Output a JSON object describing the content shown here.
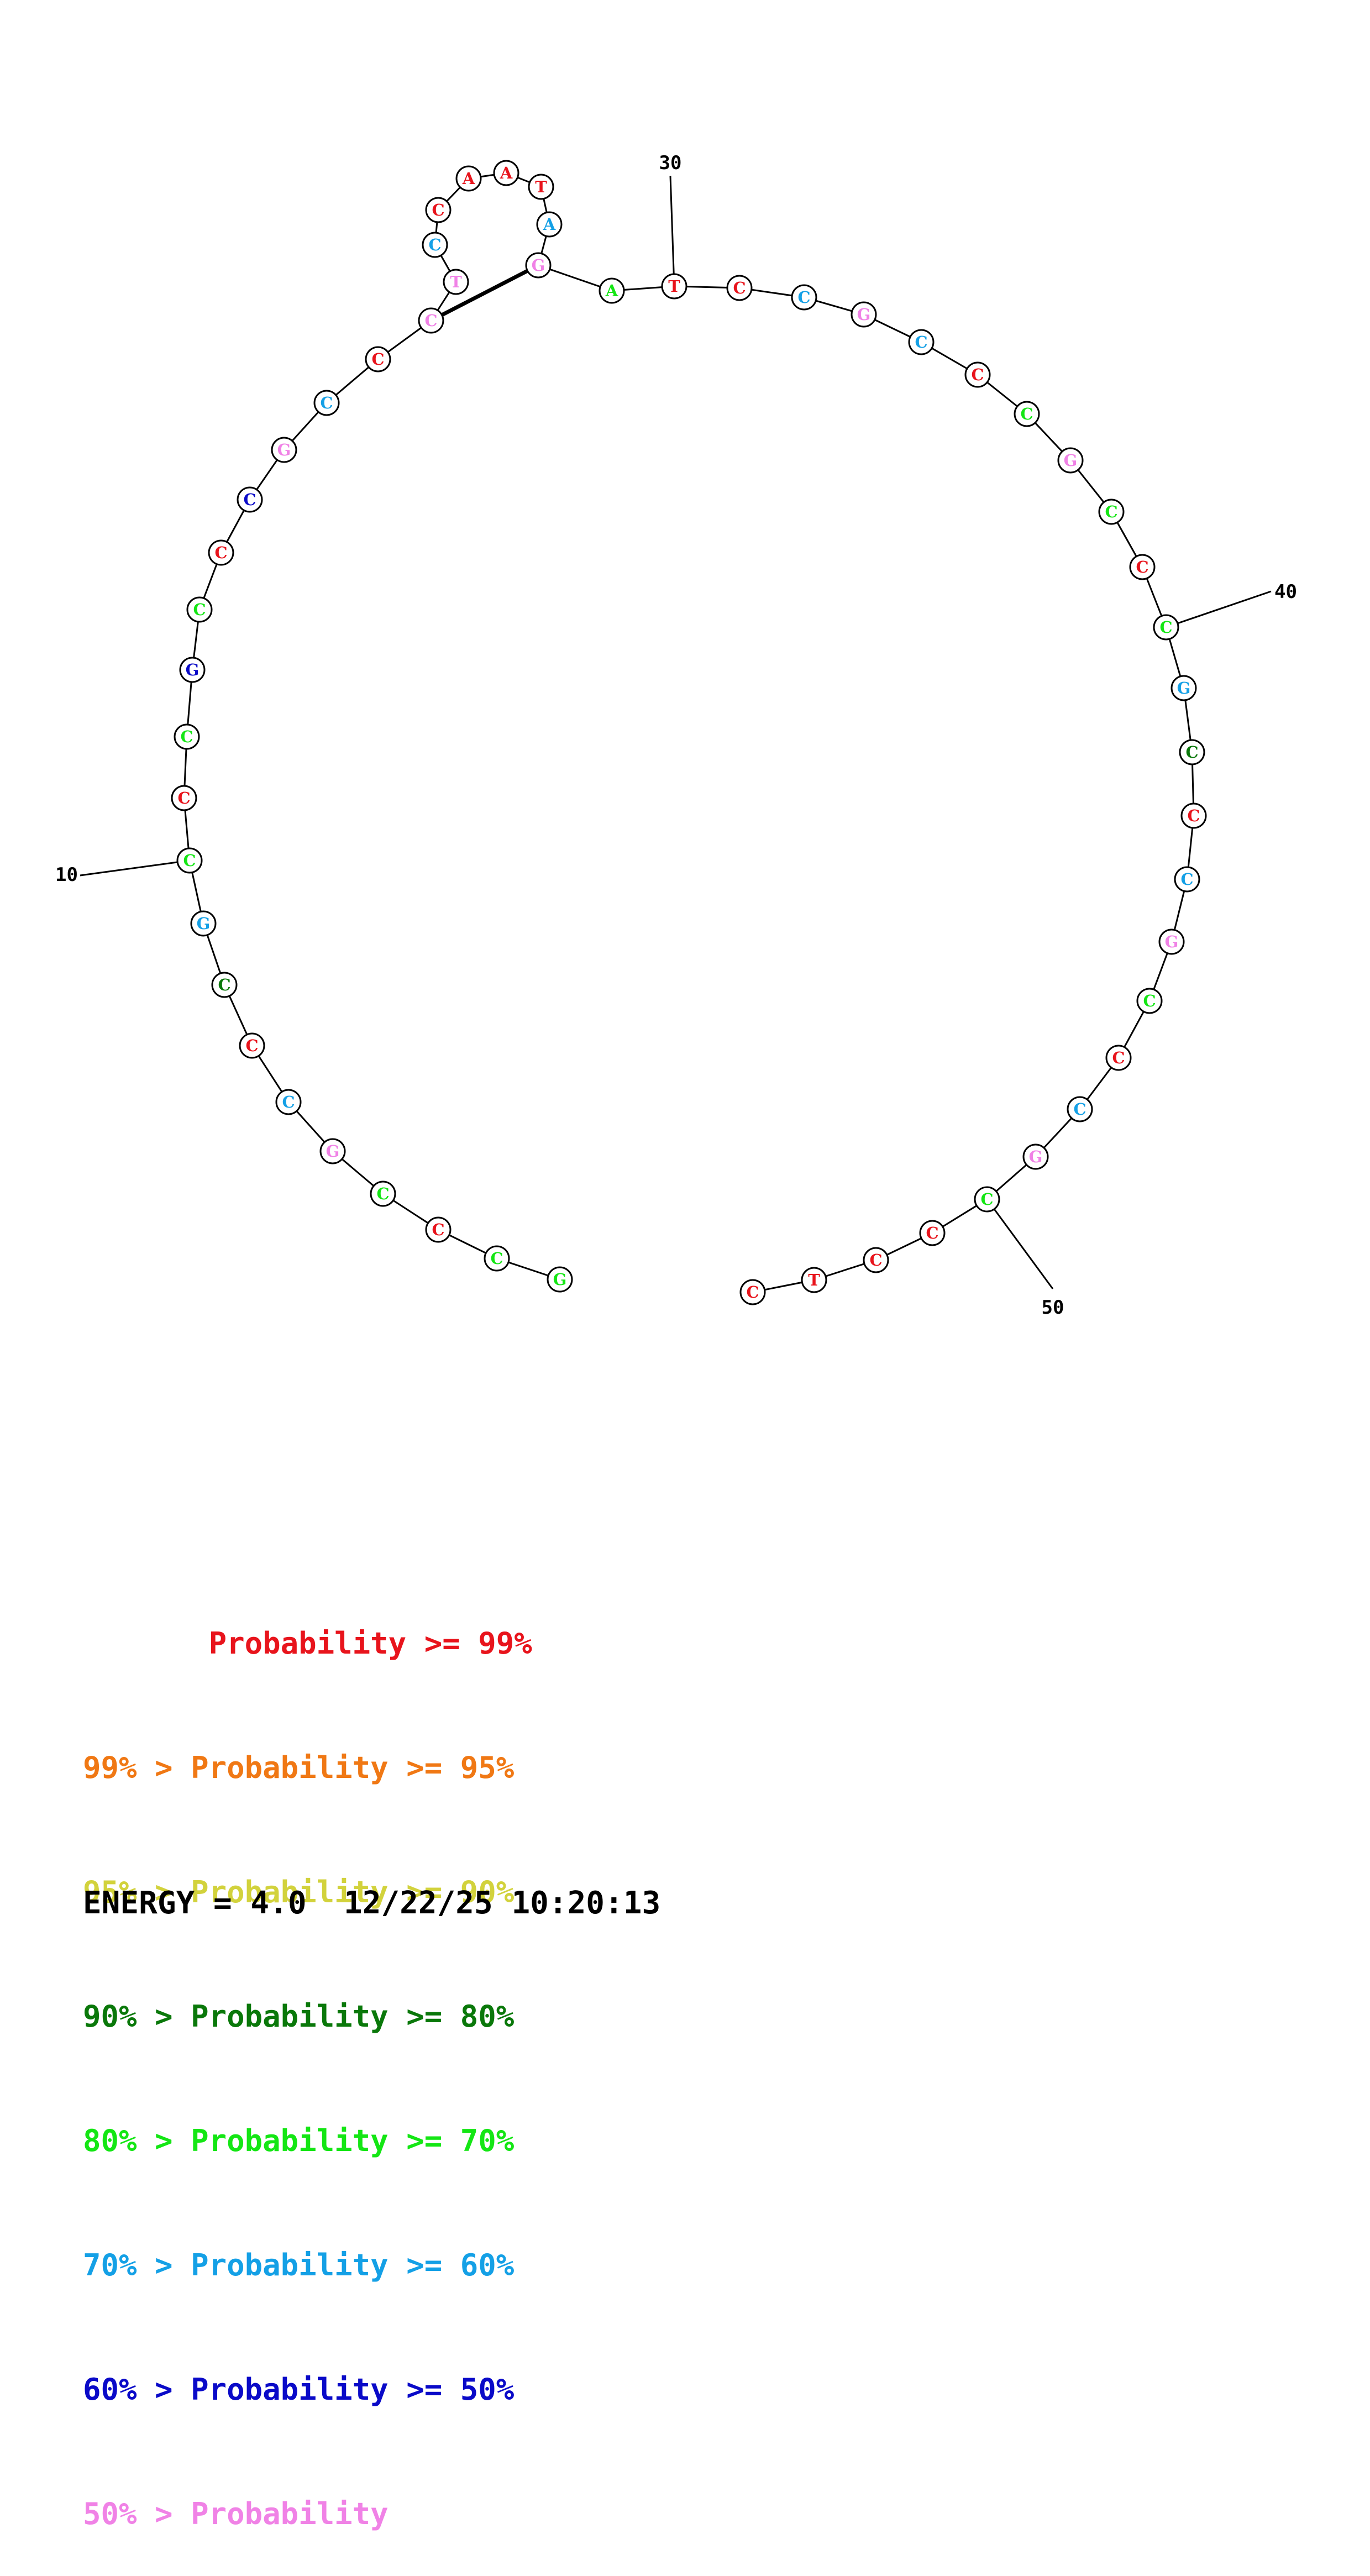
{
  "colors": {
    "p99": "#e8141c",
    "p95": "#f07814",
    "p90": "#d2d23c",
    "p80": "#0a780a",
    "p70": "#14e614",
    "p60": "#14a0e6",
    "p50": "#0a0ac8",
    "plow": "#f082e6"
  },
  "sequence": [
    {
      "base": "G",
      "prob": "p70"
    },
    {
      "base": "C",
      "prob": "p70"
    },
    {
      "base": "C",
      "prob": "p99"
    },
    {
      "base": "C",
      "prob": "p70"
    },
    {
      "base": "G",
      "prob": "plow"
    },
    {
      "base": "C",
      "prob": "p60"
    },
    {
      "base": "C",
      "prob": "p99"
    },
    {
      "base": "C",
      "prob": "p80"
    },
    {
      "base": "G",
      "prob": "p60"
    },
    {
      "base": "C",
      "prob": "p70"
    },
    {
      "base": "C",
      "prob": "p99"
    },
    {
      "base": "C",
      "prob": "p70"
    },
    {
      "base": "G",
      "prob": "p50"
    },
    {
      "base": "C",
      "prob": "p70"
    },
    {
      "base": "C",
      "prob": "p99"
    },
    {
      "base": "C",
      "prob": "p50"
    },
    {
      "base": "G",
      "prob": "plow"
    },
    {
      "base": "C",
      "prob": "p60"
    },
    {
      "base": "C",
      "prob": "p99"
    },
    {
      "base": "C",
      "prob": "plow"
    },
    {
      "base": "T",
      "prob": "plow"
    },
    {
      "base": "C",
      "prob": "p60"
    },
    {
      "base": "C",
      "prob": "p99"
    },
    {
      "base": "A",
      "prob": "p99"
    },
    {
      "base": "A",
      "prob": "p99"
    },
    {
      "base": "T",
      "prob": "p99"
    },
    {
      "base": "A",
      "prob": "p60"
    },
    {
      "base": "G",
      "prob": "plow"
    },
    {
      "base": "A",
      "prob": "p70"
    },
    {
      "base": "T",
      "prob": "p99"
    },
    {
      "base": "C",
      "prob": "p99"
    },
    {
      "base": "C",
      "prob": "p60"
    },
    {
      "base": "G",
      "prob": "plow"
    },
    {
      "base": "C",
      "prob": "p60"
    },
    {
      "base": "C",
      "prob": "p99"
    },
    {
      "base": "C",
      "prob": "p70"
    },
    {
      "base": "G",
      "prob": "plow"
    },
    {
      "base": "C",
      "prob": "p70"
    },
    {
      "base": "C",
      "prob": "p99"
    },
    {
      "base": "C",
      "prob": "p70"
    },
    {
      "base": "G",
      "prob": "p60"
    },
    {
      "base": "C",
      "prob": "p80"
    },
    {
      "base": "C",
      "prob": "p99"
    },
    {
      "base": "C",
      "prob": "p60"
    },
    {
      "base": "G",
      "prob": "plow"
    },
    {
      "base": "C",
      "prob": "p70"
    },
    {
      "base": "C",
      "prob": "p99"
    },
    {
      "base": "C",
      "prob": "p60"
    },
    {
      "base": "G",
      "prob": "plow"
    },
    {
      "base": "C",
      "prob": "p70"
    },
    {
      "base": "C",
      "prob": "p99"
    },
    {
      "base": "C",
      "prob": "p99"
    },
    {
      "base": "T",
      "prob": "p99"
    },
    {
      "base": "C",
      "prob": "p99"
    }
  ],
  "pairs": [
    [
      20,
      28
    ]
  ],
  "number_labels": [
    {
      "index": 10,
      "text": "10"
    },
    {
      "index": 30,
      "text": "30"
    },
    {
      "index": 40,
      "text": "40"
    },
    {
      "index": 50,
      "text": "50"
    }
  ],
  "legend": [
    {
      "text": "       Probability >= 99%",
      "color": "p99"
    },
    {
      "text": "99% > Probability >= 95%",
      "color": "p95"
    },
    {
      "text": "95% > Probability >= 90%",
      "color": "p90"
    },
    {
      "text": "90% > Probability >= 80%",
      "color": "p80"
    },
    {
      "text": "80% > Probability >= 70%",
      "color": "p70"
    },
    {
      "text": "70% > Probability >= 60%",
      "color": "p60"
    },
    {
      "text": "60% > Probability >= 50%",
      "color": "p50"
    },
    {
      "text": "50% > Probability",
      "color": "plow"
    }
  ],
  "footer": "ENERGY = 4.0  12/22/25 10:20:13"
}
